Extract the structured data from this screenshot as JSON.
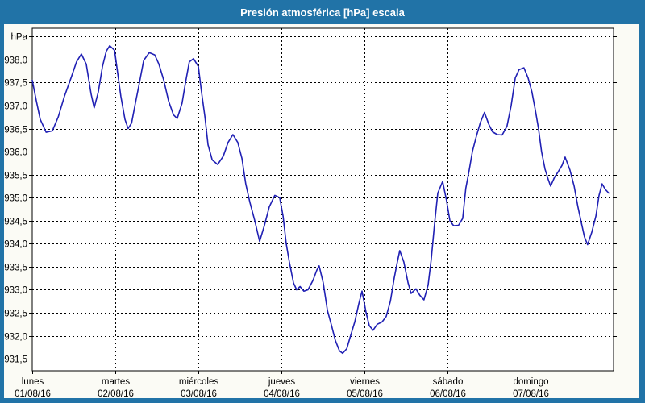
{
  "window": {
    "title": "Presión atmosférica [hPa] escala"
  },
  "colors": {
    "frame": "#2173A7",
    "titlebar_text": "#FFFFFF",
    "content_bg": "#FBFBF5",
    "plot_bg": "#FFFFFF",
    "plot_border": "#000000",
    "grid": "#000000",
    "axis_text": "#000000",
    "line": "#2020B4"
  },
  "chart_data": {
    "type": "line",
    "title": "Presión atmosférica [hPa] escala",
    "ylabel": "hPa",
    "xlabel": "",
    "grid": "dashed",
    "legend": "none",
    "ylim": [
      931.24,
      938.68
    ],
    "x_total_hours": 168,
    "y_ticks": [
      {
        "label": "hPa",
        "value": 938.5
      },
      {
        "label": "938,0",
        "value": 938.0
      },
      {
        "label": "937,5",
        "value": 937.5
      },
      {
        "label": "937,0",
        "value": 937.0
      },
      {
        "label": "936,5",
        "value": 936.5
      },
      {
        "label": "936,0",
        "value": 936.0
      },
      {
        "label": "935,5",
        "value": 935.5
      },
      {
        "label": "935,0",
        "value": 935.0
      },
      {
        "label": "934,5",
        "value": 934.5
      },
      {
        "label": "934,0",
        "value": 934.0
      },
      {
        "label": "933,5",
        "value": 933.5
      },
      {
        "label": "933,0",
        "value": 933.0
      },
      {
        "label": "932,5",
        "value": 932.5
      },
      {
        "label": "932,0",
        "value": 932.0
      },
      {
        "label": "931,5",
        "value": 931.5
      }
    ],
    "x_days": [
      {
        "name": "lunes",
        "date": "01/08/16",
        "start_hour": 0
      },
      {
        "name": "martes",
        "date": "02/08/16",
        "start_hour": 24
      },
      {
        "name": "miércoles",
        "date": "03/08/16",
        "start_hour": 48
      },
      {
        "name": "jueves",
        "date": "04/08/16",
        "start_hour": 72
      },
      {
        "name": "viernes",
        "date": "05/08/16",
        "start_hour": 96
      },
      {
        "name": "sábado",
        "date": "06/08/16",
        "start_hour": 120
      },
      {
        "name": "domingo",
        "date": "07/08/16",
        "start_hour": 144
      }
    ],
    "series": [
      {
        "name": "Presión atmosférica",
        "unit": "hPa",
        "points": [
          [
            0,
            937.55
          ],
          [
            1.2,
            937.1
          ],
          [
            2.3,
            936.7
          ],
          [
            4,
            936.42
          ],
          [
            5.8,
            936.45
          ],
          [
            7.5,
            936.75
          ],
          [
            9.3,
            937.2
          ],
          [
            11.2,
            937.6
          ],
          [
            12.8,
            937.95
          ],
          [
            14.2,
            938.12
          ],
          [
            15.6,
            937.9
          ],
          [
            17,
            937.25
          ],
          [
            17.9,
            936.95
          ],
          [
            19.1,
            937.3
          ],
          [
            20.3,
            937.85
          ],
          [
            21.4,
            938.18
          ],
          [
            22.4,
            938.3
          ],
          [
            23.8,
            938.2
          ],
          [
            24.7,
            937.7
          ],
          [
            25.6,
            937.2
          ],
          [
            26.8,
            936.7
          ],
          [
            27.7,
            936.5
          ],
          [
            28.7,
            936.62
          ],
          [
            29.8,
            937.05
          ],
          [
            31,
            937.5
          ],
          [
            32.2,
            937.98
          ],
          [
            33.8,
            938.15
          ],
          [
            35.4,
            938.1
          ],
          [
            36.6,
            937.9
          ],
          [
            38,
            937.55
          ],
          [
            39.4,
            937.1
          ],
          [
            40.8,
            936.8
          ],
          [
            41.9,
            936.72
          ],
          [
            43.3,
            937.05
          ],
          [
            44.3,
            937.5
          ],
          [
            45.4,
            937.95
          ],
          [
            46.6,
            938.02
          ],
          [
            48,
            937.85
          ],
          [
            48.9,
            937.3
          ],
          [
            49.9,
            936.75
          ],
          [
            50.8,
            936.15
          ],
          [
            52,
            935.82
          ],
          [
            53.6,
            935.72
          ],
          [
            55.2,
            935.9
          ],
          [
            56.6,
            936.2
          ],
          [
            58,
            936.37
          ],
          [
            59.4,
            936.2
          ],
          [
            60.6,
            935.85
          ],
          [
            61.7,
            935.3
          ],
          [
            62.9,
            934.9
          ],
          [
            64.3,
            934.5
          ],
          [
            65.7,
            934.05
          ],
          [
            67.1,
            934.4
          ],
          [
            68.5,
            934.8
          ],
          [
            70.1,
            935.05
          ],
          [
            71.5,
            935.0
          ],
          [
            72.5,
            934.6
          ],
          [
            73.4,
            934.0
          ],
          [
            74.3,
            933.6
          ],
          [
            75.5,
            933.15
          ],
          [
            76.4,
            933.0
          ],
          [
            77.4,
            933.07
          ],
          [
            78.5,
            932.97
          ],
          [
            79.7,
            933.0
          ],
          [
            81.1,
            933.2
          ],
          [
            82.2,
            933.42
          ],
          [
            82.9,
            933.52
          ],
          [
            84.1,
            933.15
          ],
          [
            85.3,
            932.55
          ],
          [
            86.4,
            932.25
          ],
          [
            87.6,
            931.9
          ],
          [
            88.8,
            931.67
          ],
          [
            89.7,
            931.62
          ],
          [
            90.9,
            931.72
          ],
          [
            92,
            932.0
          ],
          [
            93.2,
            932.3
          ],
          [
            94.4,
            932.7
          ],
          [
            95.3,
            932.97
          ],
          [
            96.5,
            932.5
          ],
          [
            97.4,
            932.22
          ],
          [
            98.5,
            932.12
          ],
          [
            99.7,
            932.25
          ],
          [
            101.1,
            932.3
          ],
          [
            102.3,
            932.42
          ],
          [
            103.5,
            932.75
          ],
          [
            104.6,
            933.25
          ],
          [
            105.5,
            933.6
          ],
          [
            106.2,
            933.85
          ],
          [
            107.4,
            933.6
          ],
          [
            108.6,
            933.15
          ],
          [
            109.5,
            932.92
          ],
          [
            110.9,
            933.02
          ],
          [
            112,
            932.88
          ],
          [
            113.2,
            932.78
          ],
          [
            114.4,
            933.1
          ],
          [
            115.3,
            933.65
          ],
          [
            116.3,
            934.45
          ],
          [
            117.2,
            935.1
          ],
          [
            118.6,
            935.35
          ],
          [
            119.7,
            934.95
          ],
          [
            120.7,
            934.5
          ],
          [
            121.8,
            934.39
          ],
          [
            123.2,
            934.4
          ],
          [
            124.4,
            934.55
          ],
          [
            125.3,
            935.2
          ],
          [
            126.3,
            935.6
          ],
          [
            127.2,
            936.0
          ],
          [
            128.4,
            936.35
          ],
          [
            129.5,
            936.63
          ],
          [
            130.7,
            936.85
          ],
          [
            131.9,
            936.6
          ],
          [
            133,
            936.43
          ],
          [
            134.4,
            936.37
          ],
          [
            135.8,
            936.36
          ],
          [
            137.2,
            936.55
          ],
          [
            138.4,
            937.0
          ],
          [
            139.6,
            937.6
          ],
          [
            140.7,
            937.78
          ],
          [
            142.1,
            937.82
          ],
          [
            143.3,
            937.6
          ],
          [
            144.4,
            937.3
          ],
          [
            145.4,
            936.9
          ],
          [
            146.3,
            936.5
          ],
          [
            147.2,
            936.0
          ],
          [
            148.2,
            935.62
          ],
          [
            149.1,
            935.4
          ],
          [
            149.8,
            935.25
          ],
          [
            151,
            935.45
          ],
          [
            151.9,
            935.55
          ],
          [
            153.1,
            935.7
          ],
          [
            154,
            935.88
          ],
          [
            155.4,
            935.6
          ],
          [
            156.6,
            935.25
          ],
          [
            157.7,
            934.8
          ],
          [
            158.7,
            934.45
          ],
          [
            159.6,
            934.15
          ],
          [
            160.5,
            933.98
          ],
          [
            161.7,
            934.25
          ],
          [
            162.9,
            934.6
          ],
          [
            163.8,
            935.05
          ],
          [
            164.7,
            935.3
          ],
          [
            165.6,
            935.18
          ],
          [
            166.6,
            935.1
          ]
        ]
      }
    ]
  }
}
